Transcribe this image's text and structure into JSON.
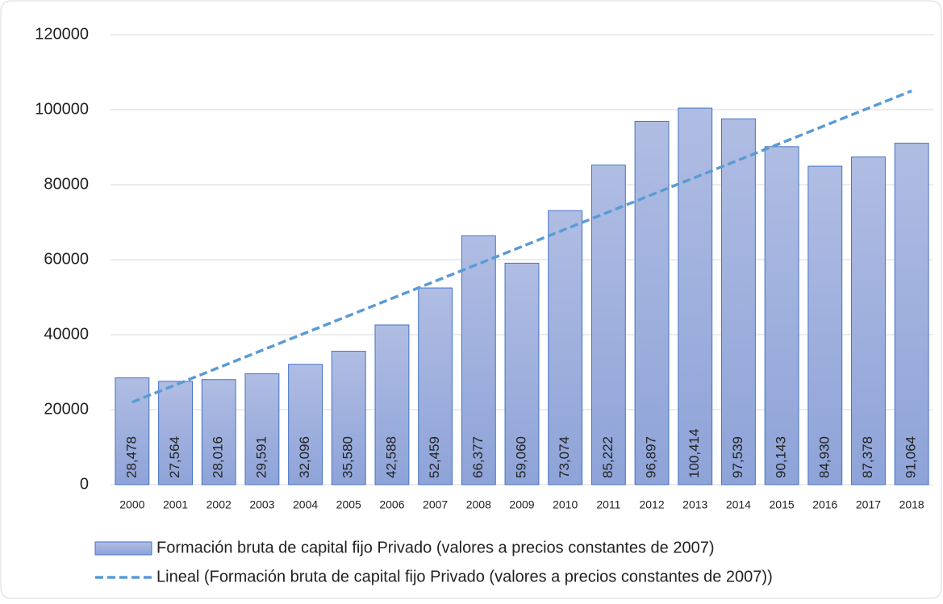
{
  "chart_data": {
    "type": "bar",
    "categories": [
      "2000",
      "2001",
      "2002",
      "2003",
      "2004",
      "2005",
      "2006",
      "2007",
      "2008",
      "2009",
      "2010",
      "2011",
      "2012",
      "2013",
      "2014",
      "2015",
      "2016",
      "2017",
      "2018"
    ],
    "series": [
      {
        "name": "Formación bruta de capital fijo Privado (valores a precios constantes de 2007)",
        "type": "bar",
        "color": "#8fa5d9",
        "values": [
          28478,
          27564,
          28016,
          29591,
          32096,
          35580,
          42588,
          52459,
          66377,
          59060,
          73074,
          85222,
          96897,
          100414,
          97539,
          90143,
          84930,
          87378,
          91064
        ],
        "value_labels": [
          "28,478",
          "27,564",
          "28,016",
          "29,591",
          "32,096",
          "35,580",
          "42,588",
          "52,459",
          "66,377",
          "59,060",
          "73,074",
          "85,222",
          "96,897",
          "100,414",
          "97,539",
          "90,143",
          "84,930",
          "87,378",
          "91,064"
        ]
      },
      {
        "name": "Lineal (Formación bruta de capital fijo Privado (valores a precios constantes de 2007))",
        "type": "line",
        "color": "#5b9bd5",
        "dashed": true,
        "values": [
          22000,
          26611,
          31222,
          35833,
          40444,
          45056,
          49667,
          54278,
          58889,
          63500,
          68111,
          72722,
          77333,
          81944,
          86556,
          91167,
          95778,
          100389,
          105000
        ]
      }
    ],
    "ylim": [
      0,
      120000
    ],
    "yticks": [
      0,
      20000,
      40000,
      60000,
      80000,
      100000,
      120000
    ],
    "grid": true,
    "legend": "bottom"
  }
}
